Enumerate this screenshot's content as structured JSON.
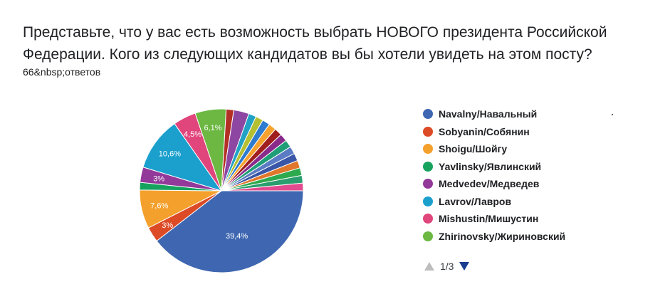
{
  "question": "Представьте, что у вас есть возможность выбрать НОВОГО президента Российской Федерации. Кого из следующих кандидатов вы бы хотели увидеть на этом посту?",
  "responses": "66&nbsp;ответов",
  "pager": {
    "text": "1/3"
  },
  "chart_data": {
    "type": "pie",
    "labels": [
      "Navalny/Навальный",
      "Sobyanin/Собянин",
      "Shoigu/Шойгу",
      "Yavlinsky/Явлинский",
      "Medvedev/Медведев",
      "Lavrov/Лавров",
      "Mishustin/Мишустин",
      "Zhirinovsky/Жириновский",
      "",
      "",
      "",
      "",
      "",
      "",
      "",
      "",
      "",
      "",
      "",
      "",
      "",
      "",
      ""
    ],
    "values": [
      39.4,
      3,
      7.6,
      1.5,
      3,
      10.6,
      4.5,
      6.1,
      1.5,
      3,
      1.5,
      1.5,
      1.5,
      1.5,
      1.5,
      1.5,
      1.5,
      1.5,
      1.5,
      1.5,
      1.5,
      1.5,
      1.5
    ],
    "value_labels": [
      "39,4%",
      "3%",
      "7,6%",
      "",
      "3%",
      "10,6%",
      "4,5%",
      "6,1%",
      "",
      "",
      "",
      "",
      "",
      "",
      "",
      "",
      "",
      "",
      "",
      "",
      "",
      "",
      ""
    ],
    "colors": [
      "#3f67b1",
      "#dc4a26",
      "#f4a02c",
      "#16a35e",
      "#93399a",
      "#1ba0cd",
      "#e0457b",
      "#6cb842",
      "#b33025",
      "#8e46a3",
      "#21a2c5",
      "#b5bf32",
      "#2e7bcf",
      "#f7a22e",
      "#a01e1e",
      "#8a2a8a",
      "#1f9e77",
      "#5b7cc4",
      "#3a56a6",
      "#e0772a",
      "#2eaa4e",
      "#2a9e6e",
      "#e24b8f"
    ],
    "legend": [
      {
        "label": "Navalny/Навальный",
        "color": "#3f67b1"
      },
      {
        "label": "Sobyanin/Собянин",
        "color": "#dc4a26"
      },
      {
        "label": "Shoigu/Шойгу",
        "color": "#f4a02c"
      },
      {
        "label": "Yavlinsky/Явлинский",
        "color": "#16a35e"
      },
      {
        "label": "Medvedev/Медведев",
        "color": "#93399a"
      },
      {
        "label": "Lavrov/Лавров",
        "color": "#1ba0cd"
      },
      {
        "label": "Mishustin/Мишустин",
        "color": "#e0457b"
      },
      {
        "label": "Zhirinovsky/Жириновский",
        "color": "#6cb842"
      }
    ],
    "legend_placement": "right"
  }
}
